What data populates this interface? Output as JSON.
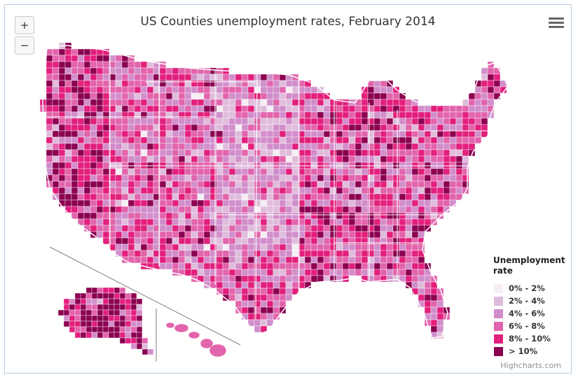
{
  "chart_data": {
    "type": "choropleth-map",
    "title": "US Counties unemployment rates, February 2014",
    "region": "United States counties",
    "legend": {
      "title": "Unemployment rate",
      "position": "bottom-right",
      "classes": [
        {
          "label": "0% - 2%",
          "from": 0,
          "to": 2,
          "color": "#f5eef5"
        },
        {
          "label": "2% - 4%",
          "from": 2,
          "to": 4,
          "color": "#dfbcdc"
        },
        {
          "label": "4% - 6%",
          "from": 4,
          "to": 6,
          "color": "#d18ecb"
        },
        {
          "label": "6% - 8%",
          "from": 6,
          "to": 8,
          "color": "#e264ac"
        },
        {
          "label": "8% - 10%",
          "from": 8,
          "to": 10,
          "color": "#e21f7c"
        },
        {
          "label": "> 10%",
          "from": 10,
          "to": null,
          "color": "#8b0050"
        }
      ]
    },
    "state_border_color": "#ffffff",
    "separator_color": "#606060"
  },
  "controls": {
    "zoom_in_label": "+",
    "zoom_out_label": "−",
    "menu_icon": "hamburger-menu-icon"
  },
  "credits": "Highcharts.com"
}
